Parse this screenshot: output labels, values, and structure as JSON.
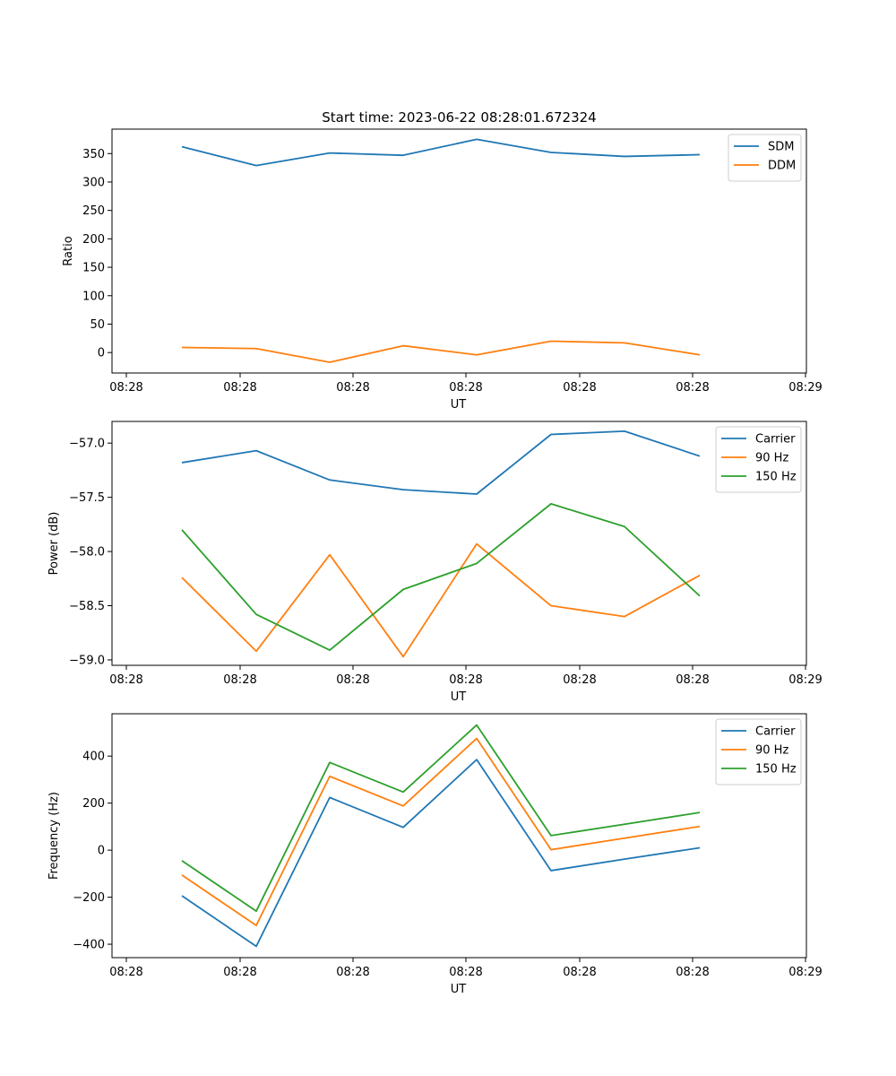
{
  "figure": {
    "title": "Start time: 2023-06-22 08:28:01.672324"
  },
  "colors": {
    "c0": "#1f77b4",
    "c1": "#ff7f0e",
    "c2": "#2ca02c",
    "axes": "#000000",
    "legend_border": "#cccccc"
  },
  "chart_data": [
    {
      "type": "line",
      "title": "Start time: 2023-06-22 08:28:01.672324",
      "xlabel": "UT",
      "ylabel": "Ratio",
      "x_tick_labels": [
        "08:28",
        "08:28",
        "08:28",
        "08:28",
        "08:28",
        "08:28",
        "08:28",
        "08:29"
      ],
      "y_ticks": [
        0,
        50,
        100,
        150,
        200,
        250,
        300,
        350
      ],
      "ylim": [
        -36,
        393
      ],
      "grid": false,
      "legend_position": "upper right",
      "series": [
        {
          "name": "SDM",
          "color": "#1f77b4",
          "values": [
            362,
            329,
            351,
            347,
            375,
            352,
            345,
            348
          ]
        },
        {
          "name": "DDM",
          "color": "#ff7f0e",
          "values": [
            9,
            7,
            -17,
            12,
            -4,
            20,
            17,
            -4
          ]
        }
      ]
    },
    {
      "type": "line",
      "title": "",
      "xlabel": "UT",
      "ylabel": "Power (dB)",
      "x_tick_labels": [
        "08:28",
        "08:28",
        "08:28",
        "08:28",
        "08:28",
        "08:28",
        "08:28",
        "08:29"
      ],
      "y_ticks": [
        -59.0,
        -58.5,
        -58.0,
        -57.5,
        -57.0
      ],
      "y_tick_labels": [
        "−59.0",
        "−58.5",
        "−58.0",
        "−57.5",
        "−57.0"
      ],
      "ylim": [
        -59.05,
        -56.8
      ],
      "grid": false,
      "legend_position": "upper right",
      "series": [
        {
          "name": "Carrier",
          "color": "#1f77b4",
          "values": [
            -57.18,
            -57.07,
            -57.34,
            -57.43,
            -57.47,
            -56.92,
            -56.89,
            -57.12
          ]
        },
        {
          "name": "90 Hz",
          "color": "#ff7f0e",
          "values": [
            -58.24,
            -58.92,
            -58.03,
            -58.97,
            -57.93,
            -58.5,
            -58.6,
            -58.22
          ]
        },
        {
          "name": "150 Hz",
          "color": "#2ca02c",
          "values": [
            -57.8,
            -58.58,
            -58.91,
            -58.35,
            -58.11,
            -57.56,
            -57.77,
            -58.41
          ]
        }
      ]
    },
    {
      "type": "line",
      "title": "",
      "xlabel": "UT",
      "ylabel": "Frequency (Hz)",
      "x_tick_labels": [
        "08:28",
        "08:28",
        "08:28",
        "08:28",
        "08:28",
        "08:28",
        "08:28",
        "08:29"
      ],
      "y_ticks": [
        -400,
        -200,
        0,
        200,
        400
      ],
      "y_tick_labels": [
        "−400",
        "−200",
        "0",
        "200",
        "400"
      ],
      "ylim": [
        -457,
        580
      ],
      "grid": false,
      "legend_position": "upper right",
      "series": [
        {
          "name": "Carrier",
          "color": "#1f77b4",
          "values": [
            -194,
            -409,
            224,
            97,
            385,
            -87,
            -38,
            10
          ]
        },
        {
          "name": "90 Hz",
          "color": "#ff7f0e",
          "values": [
            -106,
            -320,
            314,
            188,
            475,
            2,
            51,
            101
          ]
        },
        {
          "name": "150 Hz",
          "color": "#2ca02c",
          "values": [
            -45,
            -259,
            373,
            247,
            532,
            62,
            110,
            160
          ]
        }
      ]
    }
  ]
}
